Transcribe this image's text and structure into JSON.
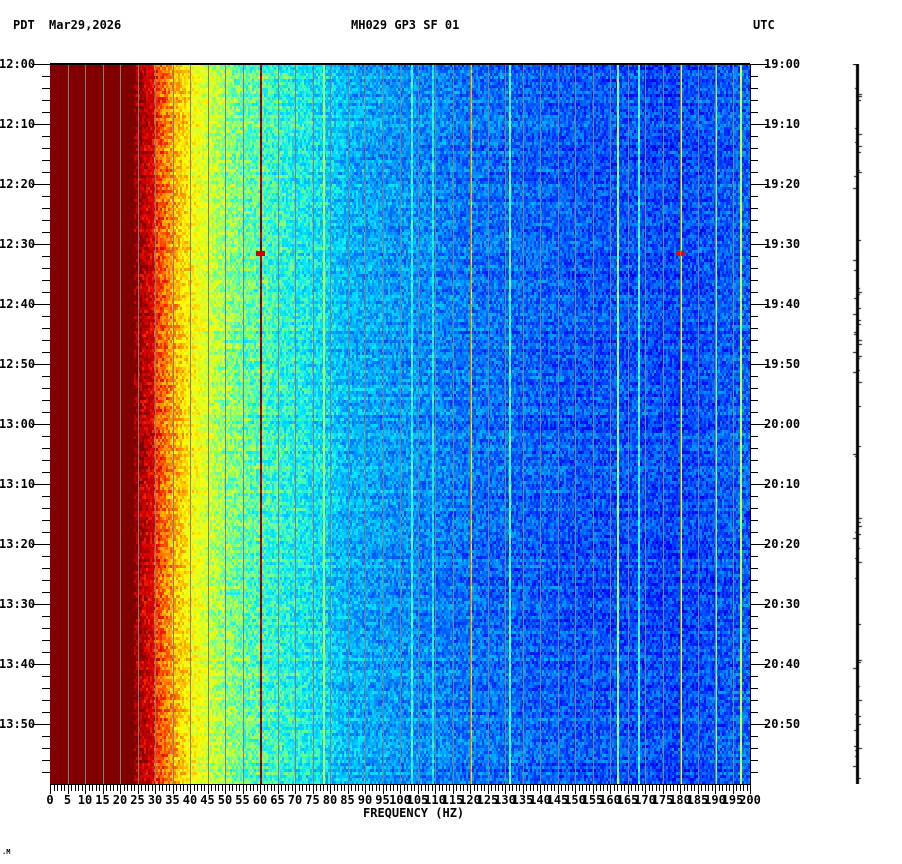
{
  "header": {
    "timezone_left": "PDT",
    "date": "Mar29,2026",
    "station": "MH029 GP3 SF 01",
    "timezone_right": "UTC"
  },
  "colors": {
    "background": "#ffffff",
    "axis": "#000000",
    "gridline": "#808080",
    "colormap": [
      "#00008b",
      "#0000ff",
      "#0050ff",
      "#00a0ff",
      "#00e8ff",
      "#60ffa0",
      "#d0ff30",
      "#ffff00",
      "#ffb000",
      "#ff5000",
      "#e00000",
      "#800000"
    ]
  },
  "chart_data": {
    "type": "heatmap",
    "title": "MH029 GP3 SF 01",
    "subtitle": "Mar29,2026",
    "xlabel": "FREQUENCY (HZ)",
    "ylabel_left": "PDT",
    "ylabel_right": "UTC",
    "xlim": [
      0,
      200
    ],
    "x_ticks": [
      0,
      5,
      10,
      15,
      20,
      25,
      30,
      35,
      40,
      45,
      50,
      55,
      60,
      65,
      70,
      75,
      80,
      85,
      90,
      95,
      100,
      105,
      110,
      115,
      120,
      125,
      130,
      135,
      140,
      145,
      150,
      155,
      160,
      165,
      170,
      175,
      180,
      185,
      190,
      195,
      200
    ],
    "x_minor_tick_step": 1,
    "y_ticks_left": [
      "12:00",
      "12:10",
      "12:20",
      "12:30",
      "12:40",
      "12:50",
      "13:00",
      "13:10",
      "13:20",
      "13:30",
      "13:40",
      "13:50"
    ],
    "y_ticks_right": [
      "19:00",
      "19:10",
      "19:20",
      "19:30",
      "19:40",
      "19:50",
      "20:00",
      "20:10",
      "20:20",
      "20:30",
      "20:40",
      "20:50"
    ],
    "y_minor_tick_step_minutes": 2,
    "duration_minutes": 120,
    "grid": {
      "vertical_every_hz": 5,
      "color": "#808080"
    },
    "intensity_profile": {
      "description": "Power saturated (dark red) from 0 to ~25 Hz, transitioning red->orange->yellow between 25 and 45 Hz, green/cyan 45-80 Hz, light-to-deep blue 80-200 Hz",
      "hz": [
        0,
        24,
        27,
        30,
        35,
        40,
        45,
        50,
        55,
        65,
        75,
        85,
        100,
        120,
        140,
        160,
        180,
        200
      ],
      "level": [
        1.0,
        1.0,
        0.93,
        0.85,
        0.74,
        0.64,
        0.56,
        0.5,
        0.46,
        0.41,
        0.37,
        0.3,
        0.26,
        0.22,
        0.2,
        0.18,
        0.17,
        0.2
      ]
    },
    "spectral_lines": [
      {
        "hz": 60,
        "level": 0.98,
        "note": "dark red line, full duration"
      },
      {
        "hz": 120,
        "level": 0.7,
        "note": "yellow/green line"
      },
      {
        "hz": 180,
        "level": 0.62,
        "note": "cyan/yellow line with red segments"
      },
      {
        "hz": 131,
        "level": 0.45
      },
      {
        "hz": 162,
        "level": 0.5
      },
      {
        "hz": 168,
        "level": 0.42
      },
      {
        "hz": 190,
        "level": 0.48
      },
      {
        "hz": 197,
        "level": 0.55
      },
      {
        "hz": 78,
        "level": 0.52
      },
      {
        "hz": 103,
        "level": 0.42
      },
      {
        "hz": 109,
        "level": 0.38
      }
    ],
    "transients": [
      {
        "hz": 60,
        "minute": 31.5,
        "level": 0.92,
        "note": "short red blip"
      },
      {
        "hz": 180,
        "minute": 31.5,
        "level": 0.9,
        "note": "red/yellow blip spanning ~177-183 Hz"
      }
    ],
    "side_trace": {
      "description": "black vertical amplitude trace to right of plot, small horizontal tick spikes"
    }
  },
  "footer": {
    "corner_mark": ".M"
  }
}
